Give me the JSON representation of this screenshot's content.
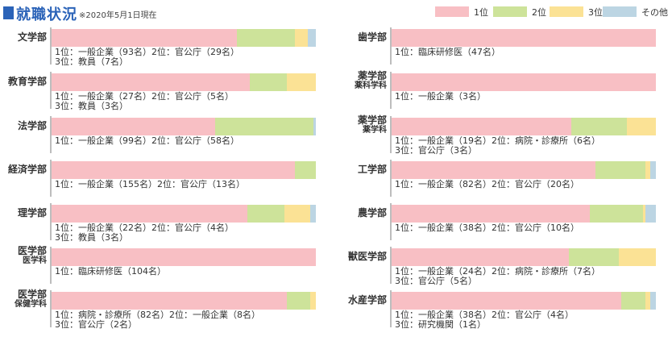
{
  "header": {
    "title": "就職状況",
    "note": "※2020年5月1日現在"
  },
  "legend": [
    {
      "label": "1位",
      "color": "#f8bfc4"
    },
    {
      "label": "2位",
      "color": "#cde39a"
    },
    {
      "label": "3位",
      "color": "#fbe295"
    },
    {
      "label": "その他",
      "color": "#bcd5e3"
    }
  ],
  "chart_data": {
    "type": "bar",
    "orientation": "horizontal",
    "stacked": true,
    "unit": "%",
    "series_names": [
      "1位",
      "2位",
      "3位",
      "その他"
    ],
    "left_column": [
      {
        "faculty": "文学部",
        "sub": "",
        "values": [
          70,
          22,
          5,
          3
        ],
        "lines": [
          "1位：一般企業（93名）2位：官公庁（29名）",
          "3位：教員（7名）"
        ]
      },
      {
        "faculty": "教育学部",
        "sub": "",
        "values": [
          75,
          14,
          11,
          0
        ],
        "lines": [
          "1位：一般企業（27名）2位：官公庁（5名）",
          "3位：教員（3名）"
        ]
      },
      {
        "faculty": "法学部",
        "sub": "",
        "values": [
          62,
          37,
          0,
          1
        ],
        "lines": [
          "1位：一般企業（99名）2位：官公庁（58名）"
        ]
      },
      {
        "faculty": "経済学部",
        "sub": "",
        "values": [
          92,
          8,
          0,
          0
        ],
        "lines": [
          "1位：一般企業（155名）2位：官公庁（13名）"
        ]
      },
      {
        "faculty": "理学部",
        "sub": "",
        "values": [
          74,
          14,
          10,
          2
        ],
        "lines": [
          "1位：一般企業（22名）2位：官公庁（4名）",
          "3位：教員（3名）"
        ]
      },
      {
        "faculty": "医学部",
        "sub": "医学科",
        "values": [
          100,
          0,
          0,
          0
        ],
        "lines": [
          "1位：臨床研修医（104名）"
        ]
      },
      {
        "faculty": "医学部",
        "sub": "保健学科",
        "values": [
          89,
          9,
          2,
          0
        ],
        "lines": [
          "1位：病院・診療所（82名）2位：一般企業（8名）",
          "3位：官公庁（2名）"
        ]
      }
    ],
    "right_column": [
      {
        "faculty": "歯学部",
        "sub": "",
        "values": [
          100,
          0,
          0,
          0
        ],
        "lines": [
          "1位：臨床研修医（47名）"
        ]
      },
      {
        "faculty": "薬学部",
        "sub": "薬科学科",
        "values": [
          100,
          0,
          0,
          0
        ],
        "lines": [
          "1位：一般企業（3名）"
        ]
      },
      {
        "faculty": "薬学部",
        "sub": "薬学科",
        "values": [
          68,
          21,
          11,
          0
        ],
        "lines": [
          "1位：一般企業（19名）2位：病院・診療所（6名）",
          "3位：官公庁（3名）"
        ]
      },
      {
        "faculty": "工学部",
        "sub": "",
        "values": [
          77,
          19,
          2,
          2
        ],
        "lines": [
          "1位：一般企業（82名）2位：官公庁（20名）"
        ]
      },
      {
        "faculty": "農学部",
        "sub": "",
        "values": [
          75,
          20,
          1,
          4
        ],
        "lines": [
          "1位：一般企業（38名）2位：官公庁（10名）"
        ]
      },
      {
        "faculty": "獣医学部",
        "sub": "",
        "values": [
          67,
          19,
          14,
          0
        ],
        "lines": [
          "1位：一般企業（24名）2位：病院・診療所（7名）",
          "3位：官公庁（5名）"
        ]
      },
      {
        "faculty": "水産学部",
        "sub": "",
        "values": [
          87,
          9,
          2,
          2
        ],
        "lines": [
          "1位：一般企業（38名）2位：官公庁（4名）",
          "3位：研究機関（1名）"
        ]
      }
    ]
  }
}
